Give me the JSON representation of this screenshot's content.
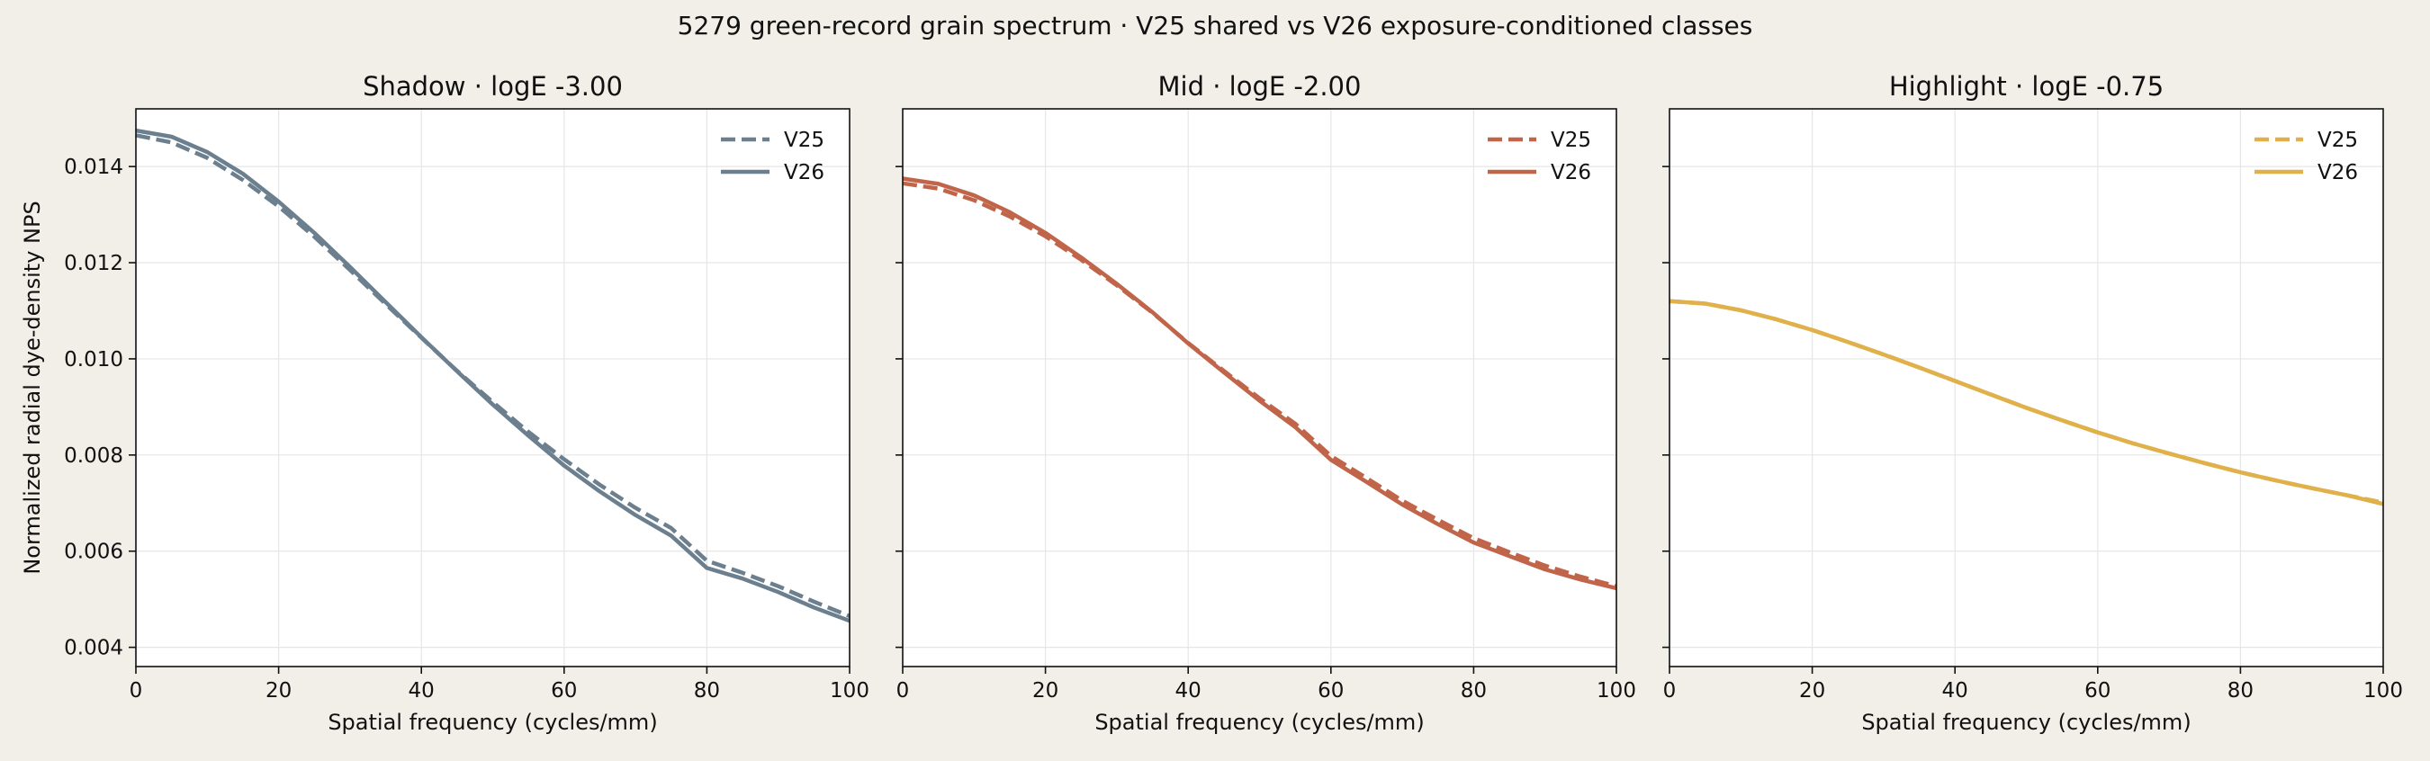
{
  "figure": {
    "suptitle": "5279 green-record grain spectrum · V25 shared vs V26 exposure-conditioned classes",
    "background": "#f2efe8"
  },
  "chart_data": [
    {
      "type": "line",
      "title": "Shadow · logE -3.00",
      "xlabel": "Spatial frequency (cycles/mm)",
      "ylabel": "Normalized radial dye-density NPS",
      "xlim": [
        0,
        100
      ],
      "ylim": [
        0.0036,
        0.0152
      ],
      "xticks": [
        0,
        20,
        40,
        60,
        80,
        100
      ],
      "yticks": [
        0.004,
        0.006,
        0.008,
        0.01,
        0.012,
        0.014
      ],
      "ytick_labels": [
        "0.004",
        "0.006",
        "0.008",
        "0.010",
        "0.012",
        "0.014"
      ],
      "grid": true,
      "legend_position": "top-right",
      "color": "#6b7f8e",
      "x": [
        0,
        5,
        10,
        15,
        20,
        25,
        30,
        35,
        40,
        45,
        50,
        55,
        60,
        65,
        70,
        75,
        80,
        85,
        90,
        95,
        100
      ],
      "series": [
        {
          "name": "V25",
          "style": "dashed",
          "values": [
            0.01465,
            0.0145,
            0.01418,
            0.01372,
            0.01317,
            0.01254,
            0.01185,
            0.01114,
            0.01044,
            0.00975,
            0.0091,
            0.00848,
            0.00791,
            0.00738,
            0.0069,
            0.00648,
            0.0058,
            0.00555,
            0.00527,
            0.00495,
            0.00465
          ]
        },
        {
          "name": "V26",
          "style": "solid",
          "values": [
            0.01475,
            0.01462,
            0.0143,
            0.01385,
            0.01327,
            0.01262,
            0.01191,
            0.01118,
            0.01045,
            0.00974,
            0.00905,
            0.0084,
            0.00778,
            0.00724,
            0.00675,
            0.00632,
            0.00565,
            0.00543,
            0.00515,
            0.00483,
            0.00455
          ]
        }
      ]
    },
    {
      "type": "line",
      "title": "Mid · logE -2.00",
      "xlabel": "Spatial frequency (cycles/mm)",
      "xlim": [
        0,
        100
      ],
      "ylim": [
        0.0036,
        0.0152
      ],
      "xticks": [
        0,
        20,
        40,
        60,
        80,
        100
      ],
      "yticks": [
        0.004,
        0.006,
        0.008,
        0.01,
        0.012,
        0.014
      ],
      "grid": true,
      "legend_position": "top-right",
      "color": "#c0654a",
      "x": [
        0,
        5,
        10,
        15,
        20,
        25,
        30,
        35,
        40,
        45,
        50,
        55,
        60,
        65,
        70,
        75,
        80,
        85,
        90,
        95,
        100
      ],
      "series": [
        {
          "name": "V25",
          "style": "dashed",
          "values": [
            0.01365,
            0.01354,
            0.0133,
            0.01296,
            0.01255,
            0.01206,
            0.01153,
            0.01096,
            0.01033,
            0.00975,
            0.00918,
            0.00865,
            0.00798,
            0.00752,
            0.00705,
            0.00665,
            0.00627,
            0.00598,
            0.0057,
            0.00547,
            0.00527
          ]
        },
        {
          "name": "V26",
          "style": "solid",
          "values": [
            0.01375,
            0.01364,
            0.0134,
            0.01305,
            0.01262,
            0.01211,
            0.01156,
            0.01097,
            0.01032,
            0.00972,
            0.00913,
            0.00858,
            0.0079,
            0.00744,
            0.00697,
            0.00656,
            0.00618,
            0.0059,
            0.00562,
            0.00541,
            0.00523
          ]
        }
      ]
    },
    {
      "type": "line",
      "title": "Highlight · logE -0.75",
      "xlabel": "Spatial frequency (cycles/mm)",
      "xlim": [
        0,
        100
      ],
      "ylim": [
        0.0036,
        0.0152
      ],
      "xticks": [
        0,
        20,
        40,
        60,
        80,
        100
      ],
      "yticks": [
        0.004,
        0.006,
        0.008,
        0.01,
        0.012,
        0.014
      ],
      "grid": true,
      "legend_position": "top-right",
      "color": "#e0b04a",
      "x": [
        0,
        5,
        10,
        15,
        20,
        25,
        30,
        35,
        40,
        45,
        50,
        55,
        60,
        65,
        70,
        75,
        80,
        85,
        90,
        95,
        100
      ],
      "series": [
        {
          "name": "V25",
          "style": "dashed",
          "values": [
            0.0112,
            0.01115,
            0.01101,
            0.01082,
            0.0106,
            0.01035,
            0.01009,
            0.00982,
            0.00954,
            0.00926,
            0.00898,
            0.00872,
            0.00847,
            0.00824,
            0.00803,
            0.00783,
            0.00764,
            0.00747,
            0.00731,
            0.00716,
            0.00701
          ]
        },
        {
          "name": "V26",
          "style": "solid",
          "values": [
            0.0112,
            0.01115,
            0.01101,
            0.01082,
            0.0106,
            0.01035,
            0.01009,
            0.00982,
            0.00954,
            0.00926,
            0.00898,
            0.00872,
            0.00847,
            0.00824,
            0.00803,
            0.00783,
            0.00764,
            0.00747,
            0.00731,
            0.00716,
            0.00698
          ]
        }
      ]
    }
  ]
}
